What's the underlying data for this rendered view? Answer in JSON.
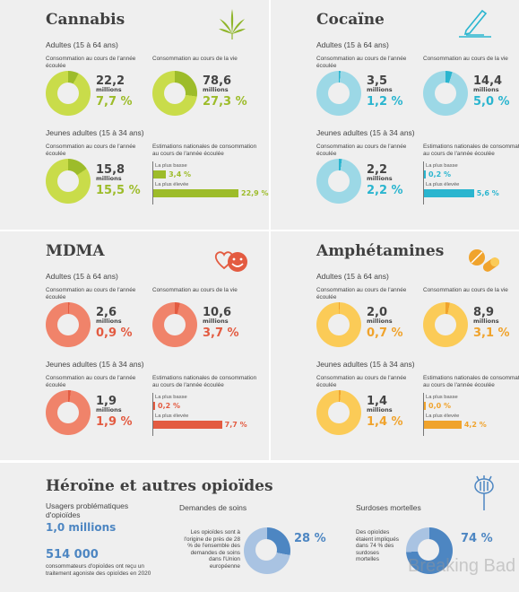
{
  "colors": {
    "cannabis": "#9dbc2a",
    "cannabis_light": "#c9dc4a",
    "cocaine": "#2ab5cf",
    "cocaine_light": "#9cd8e6",
    "mdma": "#e35b41",
    "mdma_light": "#f0836a",
    "amph": "#f0a32c",
    "amph_light": "#fbcb57",
    "opioid": "#4d86c2",
    "opioid_light": "#a9c3e2"
  },
  "labels": {
    "adults": "Adultes (15 à 64 ans)",
    "young": "Jeunes adultes (15 à 34 ans)",
    "year_use": "Consommation au cours de l'année écoulée",
    "life_use": "Consommation au cours de la vie",
    "estimates": "Estimations nationales de consommation au cours de l'année écoulée",
    "lowest": "La plus basse",
    "highest": "La plus élevée",
    "millions": "millions"
  },
  "drugs": [
    {
      "key": "cannabis",
      "title": "Cannabis",
      "icon": "cannabis-leaf-icon",
      "adult_year": {
        "value": "22,2",
        "pct": "7,7 %",
        "frac": 0.077
      },
      "adult_life": {
        "value": "78,6",
        "pct": "27,3 %",
        "frac": 0.273
      },
      "young_year": {
        "value": "15,8",
        "pct": "15,5 %",
        "frac": 0.155
      },
      "low": "3,4 %",
      "low_val": 3.4,
      "high": "22,9 %",
      "high_val": 22.9
    },
    {
      "key": "cocaine",
      "title": "Cocaïne",
      "icon": "pen-line-icon",
      "adult_year": {
        "value": "3,5",
        "pct": "1,2 %",
        "frac": 0.012
      },
      "adult_life": {
        "value": "14,4",
        "pct": "5,0 %",
        "frac": 0.05
      },
      "young_year": {
        "value": "2,2",
        "pct": "2,2 %",
        "frac": 0.022
      },
      "low": "0,2 %",
      "low_val": 0.2,
      "high": "5,6 %",
      "high_val": 5.6
    },
    {
      "key": "mdma",
      "title": "MDMA",
      "icon": "smiley-heart-icon",
      "adult_year": {
        "value": "2,6",
        "pct": "0,9 %",
        "frac": 0.009
      },
      "adult_life": {
        "value": "10,6",
        "pct": "3,7 %",
        "frac": 0.037
      },
      "young_year": {
        "value": "1,9",
        "pct": "1,9 %",
        "frac": 0.019
      },
      "low": "0,2 %",
      "low_val": 0.2,
      "high": "7,7 %",
      "high_val": 7.7
    },
    {
      "key": "amph",
      "title": "Amphétamines",
      "icon": "pill-capsule-icon",
      "adult_year": {
        "value": "2,0",
        "pct": "0,7 %",
        "frac": 0.007
      },
      "adult_life": {
        "value": "8,9",
        "pct": "3,1 %",
        "frac": 0.031
      },
      "young_year": {
        "value": "1,4",
        "pct": "1,4 %",
        "frac": 0.014
      },
      "low": "0,0 %",
      "low_val": 0.0,
      "high": "4,2 %",
      "high_val": 4.2
    }
  ],
  "opioids": {
    "title": "Héroïne et autres opioïdes",
    "icon": "poppy-icon",
    "problem_label": "Usagers problématiques d'opioïdes",
    "problem_value": "1,0 millions",
    "treat_value": "514 000",
    "treat_text": "consommateurs d'opioïdes ont reçu un traitement agoniste des opioïdes en 2020",
    "care_label": "Demandes de soins",
    "care_text": "Les opioïdes sont à l'origine de près de 28 % de l'ensemble des demandes de soins dans l'Union européenne",
    "care_pct": "28 %",
    "care_frac": 0.28,
    "deaths_label": "Surdoses mortelles",
    "deaths_text": "Des opioïdes étaient impliqués dans 74 % des surdoses mortelles",
    "deaths_pct": "74 %",
    "deaths_frac": 0.74
  },
  "watermark": "Breaking Bad"
}
